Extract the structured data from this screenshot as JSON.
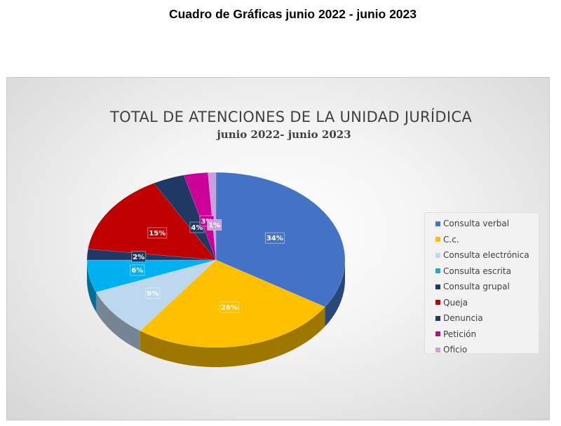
{
  "page": {
    "heading": "Cuadro de Gráficas junio 2022 - junio 2023"
  },
  "chart_data": {
    "type": "pie",
    "title": "TOTAL DE ATENCIONES DE LA UNIDAD JURÍDICA",
    "subtitle": "junio 2022- junio 2023",
    "legend_position": "right",
    "style": "3d-pie",
    "categories": [
      "Consulta verbal",
      "C.c.",
      "Consulta electrónica",
      "Consulta escrita",
      "Consulta grupal",
      "Queja",
      "Denuncia",
      "Petición",
      "Oficio"
    ],
    "values": [
      34,
      26,
      9,
      6,
      2,
      15,
      4,
      3,
      1
    ],
    "labels": [
      "34%",
      "26%",
      "9%",
      "6%",
      "2%",
      "15%",
      "4%",
      "3%",
      "1%"
    ],
    "unit": "%",
    "colors": [
      "#4472c4",
      "#ffc000",
      "#bdd7ee",
      "#00b0f0",
      "#1f3864",
      "#c00000",
      "#203864",
      "#cc0099",
      "#c9a0dc"
    ]
  }
}
